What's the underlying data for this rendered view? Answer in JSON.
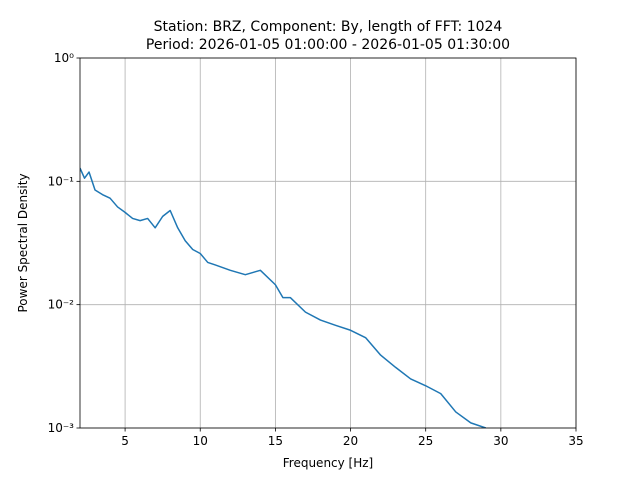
{
  "chart_data": {
    "type": "line",
    "title": "Station: BRZ, Component: By, length of FFT: 1024",
    "subtitle": "Period: 2026-01-05 01:00:00 - 2026-01-05 01:30:00",
    "x_label": "Frequency [Hz]",
    "y_label": "Power Spectral Density",
    "x": [
      2,
      2.3,
      2.6,
      3,
      3.5,
      4,
      4.5,
      5,
      5.5,
      6,
      6.5,
      7,
      7.5,
      8,
      8.5,
      9,
      9.5,
      10,
      10.5,
      11,
      12,
      13,
      14,
      15,
      15.5,
      16,
      17,
      18,
      19,
      20,
      21,
      22,
      23,
      24,
      25,
      26,
      27,
      28,
      29
    ],
    "series": [
      {
        "color": "#1f77b4",
        "values": [
          0.128,
          0.106,
          0.119,
          0.085,
          0.078,
          0.073,
          0.062,
          0.056,
          0.05,
          0.048,
          0.05,
          0.042,
          0.052,
          0.058,
          0.042,
          0.033,
          0.028,
          0.026,
          0.022,
          0.021,
          0.019,
          0.0175,
          0.019,
          0.0145,
          0.0114,
          0.0114,
          0.0087,
          0.0075,
          0.0068,
          0.0062,
          0.0054,
          0.0039,
          0.0031,
          0.0025,
          0.0022,
          0.0019,
          0.00135,
          0.0011,
          0.001
        ]
      }
    ],
    "xlim": [
      2,
      35
    ],
    "xticks": [
      5,
      10,
      15,
      20,
      25,
      30,
      35
    ],
    "ylim": [
      0.001,
      1
    ],
    "yticks": [
      {
        "value": 0.001,
        "label": "10⁻³"
      },
      {
        "value": 0.01,
        "label": "10⁻²"
      },
      {
        "value": 0.1,
        "label": "10⁻¹"
      },
      {
        "value": 1,
        "label": "10⁰"
      }
    ],
    "y_scale": "log",
    "grid": true
  }
}
